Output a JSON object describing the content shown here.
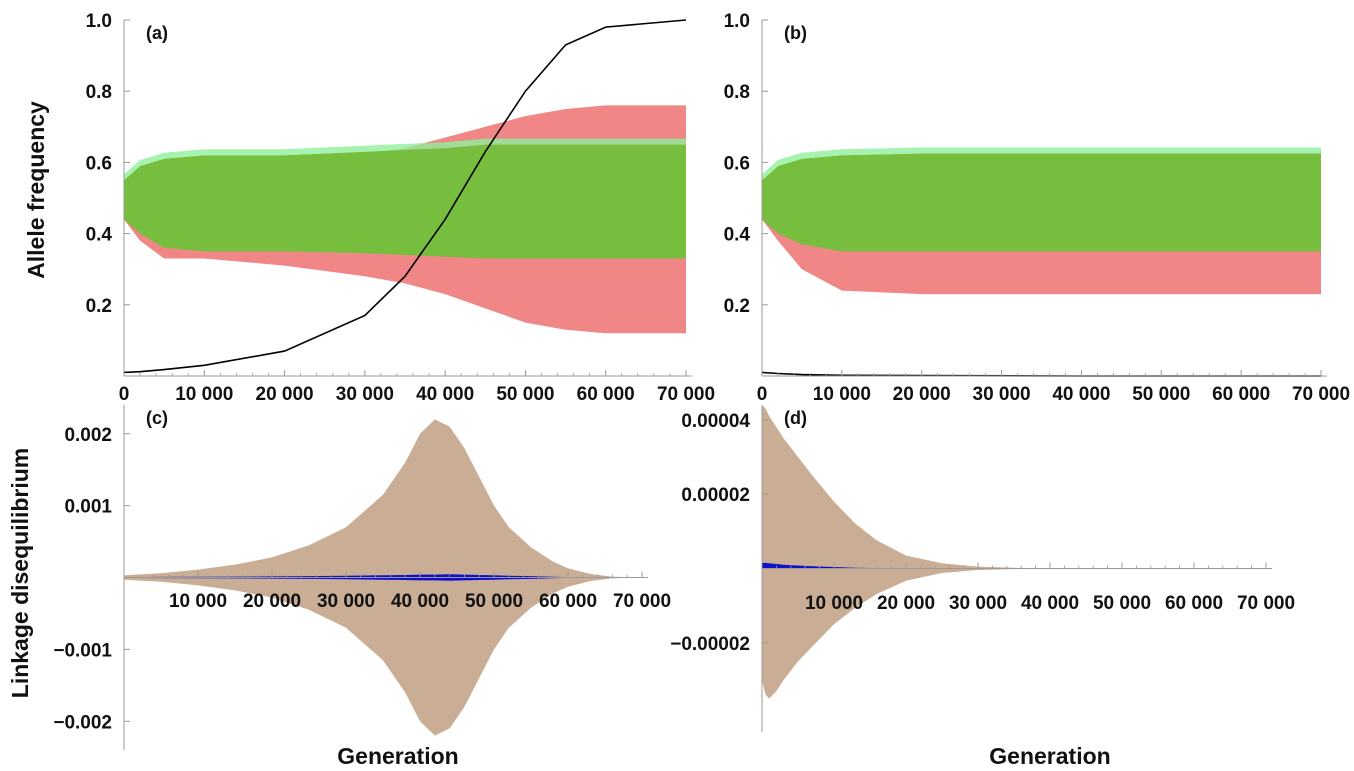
{
  "colors": {
    "red_band": "#f07f7f",
    "green_band": "#77bd3e",
    "green_light": "#8ff09a",
    "ld_band": "#c9ae95",
    "ld_blue": "#1010cc",
    "black_curve": "#000000",
    "axis": "#999999"
  },
  "figure": {
    "ylabel_top": "Allele frequency",
    "ylabel_bottom": "Linkage disequilibrium",
    "xlabel": "Generation"
  },
  "chart_data": [
    {
      "panel": "a",
      "label": "(a)",
      "type": "area",
      "xlim": [
        0,
        70000
      ],
      "ylim": [
        0,
        1.0
      ],
      "xticks": [
        0,
        10000,
        20000,
        30000,
        40000,
        50000,
        60000,
        70000
      ],
      "xtick_labels": [
        "0",
        "10 000",
        "20 000",
        "30 000",
        "40 000",
        "50 000",
        "60 000",
        "70 000"
      ],
      "yticks": [
        0.2,
        0.4,
        0.6,
        0.8,
        1.0
      ],
      "ytick_labels": [
        "0.2",
        "0.4",
        "0.6",
        "0.8",
        "1.0"
      ],
      "x": [
        0,
        2000,
        5000,
        10000,
        20000,
        30000,
        35000,
        40000,
        45000,
        50000,
        55000,
        60000,
        70000
      ],
      "series": [
        {
          "color_key": "red_band",
          "upper": [
            0.5,
            0.52,
            0.57,
            0.6,
            0.61,
            0.625,
            0.64,
            0.67,
            0.7,
            0.73,
            0.75,
            0.76,
            0.76
          ],
          "lower": [
            0.44,
            0.38,
            0.33,
            0.33,
            0.31,
            0.28,
            0.26,
            0.23,
            0.19,
            0.15,
            0.13,
            0.12,
            0.12
          ]
        },
        {
          "color_key": "green_band",
          "upper": [
            0.55,
            0.59,
            0.61,
            0.62,
            0.62,
            0.63,
            0.635,
            0.64,
            0.65,
            0.65,
            0.65,
            0.65,
            0.65
          ],
          "lower": [
            0.44,
            0.4,
            0.36,
            0.35,
            0.35,
            0.345,
            0.34,
            0.335,
            0.33,
            0.33,
            0.33,
            0.33,
            0.33
          ]
        },
        {
          "color_key": "black_curve",
          "y": [
            0.01,
            0.012,
            0.018,
            0.03,
            0.07,
            0.17,
            0.28,
            0.44,
            0.63,
            0.8,
            0.93,
            0.98,
            1.0
          ]
        }
      ]
    },
    {
      "panel": "b",
      "label": "(b)",
      "type": "area",
      "xlim": [
        0,
        70000
      ],
      "ylim": [
        0,
        1.0
      ],
      "xticks": [
        0,
        10000,
        20000,
        30000,
        40000,
        50000,
        60000,
        70000
      ],
      "xtick_labels": [
        "0",
        "10 000",
        "20 000",
        "30 000",
        "40 000",
        "50 000",
        "60 000",
        "70 000"
      ],
      "yticks": [
        0.2,
        0.4,
        0.6,
        0.8,
        1.0
      ],
      "ytick_labels": [
        "0.2",
        "0.4",
        "0.6",
        "0.8",
        "1.0"
      ],
      "x": [
        0,
        2000,
        5000,
        10000,
        20000,
        40000,
        70000
      ],
      "series": [
        {
          "color_key": "red_band",
          "upper": [
            0.5,
            0.52,
            0.56,
            0.6,
            0.6,
            0.6,
            0.6
          ],
          "lower": [
            0.44,
            0.38,
            0.3,
            0.24,
            0.23,
            0.23,
            0.23
          ]
        },
        {
          "color_key": "green_band",
          "upper": [
            0.55,
            0.59,
            0.61,
            0.62,
            0.625,
            0.625,
            0.625
          ],
          "lower": [
            0.44,
            0.4,
            0.37,
            0.35,
            0.35,
            0.35,
            0.35
          ]
        },
        {
          "color_key": "black_curve",
          "y": [
            0.01,
            0.007,
            0.004,
            0.002,
            0.001,
            0.0,
            0.0
          ]
        }
      ]
    },
    {
      "panel": "c",
      "label": "(c)",
      "type": "area",
      "xlim": [
        0,
        70000
      ],
      "ylim": [
        -0.0024,
        0.0024
      ],
      "xticks": [
        10000,
        20000,
        30000,
        40000,
        50000,
        60000,
        70000
      ],
      "xtick_labels": [
        "10 000",
        "20 000",
        "30 000",
        "40 000",
        "50 000",
        "60 000",
        "70 000"
      ],
      "yticks": [
        -0.002,
        -0.001,
        0.001,
        0.002
      ],
      "ytick_labels": [
        "−0.002",
        "−0.001",
        "0.001",
        "0.002"
      ],
      "x": [
        0,
        5000,
        10000,
        15000,
        20000,
        25000,
        30000,
        35000,
        38000,
        40000,
        42000,
        44000,
        46000,
        48000,
        50000,
        52000,
        55000,
        58000,
        60000,
        63000,
        66000,
        70000
      ],
      "series": [
        {
          "color_key": "ld_band",
          "upper": [
            3e-05,
            6e-05,
            0.00011,
            0.00018,
            0.00028,
            0.00045,
            0.0007,
            0.00115,
            0.0016,
            0.002,
            0.0022,
            0.0021,
            0.0018,
            0.0014,
            0.001,
            0.0007,
            0.00042,
            0.00022,
            0.00013,
            5e-05,
            1e-05,
            0.0
          ]
        },
        {
          "color_key": "ld_blue",
          "upper": [
            5e-06,
            8e-06,
            1e-05,
            1.2e-05,
            1.5e-05,
            2e-05,
            2.5e-05,
            3e-05,
            3.5e-05,
            4e-05,
            4e-05,
            4.5e-05,
            4e-05,
            3.5e-05,
            3e-05,
            2.5e-05,
            2e-05,
            1e-05,
            5e-06,
            2e-06,
            0.0,
            0.0
          ]
        }
      ]
    },
    {
      "panel": "d",
      "label": "(d)",
      "type": "area",
      "xlim": [
        0,
        70000
      ],
      "ylim": [
        -4.4e-05,
        4.4e-05
      ],
      "xticks": [
        10000,
        20000,
        30000,
        40000,
        50000,
        60000,
        70000
      ],
      "xtick_labels": [
        "10 000",
        "20 000",
        "30 000",
        "40 000",
        "50 000",
        "60 000",
        "70 000"
      ],
      "yticks": [
        -2e-05,
        2e-05,
        4e-05
      ],
      "ytick_labels": [
        "−0.00002",
        "0.00002",
        "0.00004"
      ],
      "x": [
        0,
        500,
        1000,
        2000,
        3000,
        5000,
        7000,
        10000,
        13000,
        16000,
        20000,
        25000,
        30000,
        35000,
        40000,
        45000,
        70000
      ],
      "series": [
        {
          "color_key": "ld_band",
          "upper": [
            4.4e-05,
            4.3e-05,
            4.1e-05,
            3.8e-05,
            3.5e-05,
            3e-05,
            2.5e-05,
            1.8e-05,
            1.2e-05,
            7.5e-06,
            3.5e-06,
            1.4e-06,
            5e-07,
            2e-07,
            1e-07,
            0.0,
            0.0
          ],
          "lower": [
            -3e-05,
            -3.4e-05,
            -3.5e-05,
            -3.3e-05,
            -3e-05,
            -2.5e-05,
            -2.1e-05,
            -1.5e-05,
            -1.05e-05,
            -6.8e-06,
            -3.3e-06,
            -1.2e-06,
            -4e-07,
            -1.5e-07,
            -5e-08,
            0.0,
            0.0
          ]
        },
        {
          "color_key": "ld_blue",
          "upper": [
            1.5e-06,
            1.5e-06,
            1.4e-06,
            1.2e-06,
            1e-06,
            8e-07,
            6e-07,
            4e-07,
            2e-07,
            1e-07,
            0.0,
            0.0,
            0.0,
            0.0,
            0.0,
            0.0,
            0.0
          ],
          "lower": [
            0.0,
            0.0,
            0.0,
            0.0,
            0.0,
            0.0,
            0.0,
            0.0,
            0.0,
            0.0,
            0.0,
            0.0,
            0.0,
            0.0,
            0.0,
            0.0,
            0.0
          ]
        }
      ]
    }
  ]
}
